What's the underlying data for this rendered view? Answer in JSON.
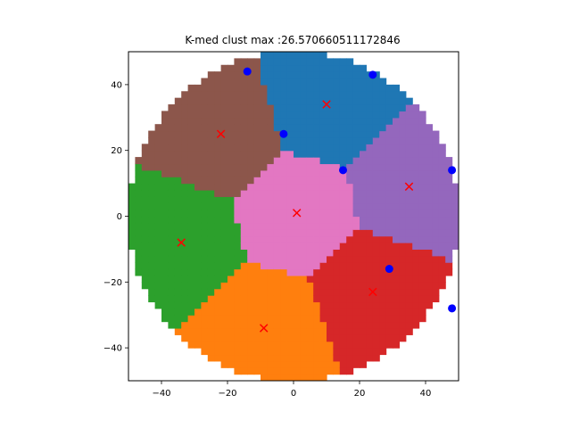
{
  "chart_data": {
    "type": "scatter",
    "title": "K-med clust max :26.570660511172846",
    "xlabel": "",
    "ylabel": "",
    "xlim": [
      -50,
      50
    ],
    "ylim": [
      -50,
      50
    ],
    "xticks": [
      -40,
      -20,
      0,
      20,
      40
    ],
    "yticks": [
      -40,
      -20,
      0,
      20,
      40
    ],
    "grid": false,
    "legend": "none",
    "region": {
      "shape": "disk",
      "center": [
        0,
        0
      ],
      "radius": 50
    },
    "clusters": [
      {
        "color": "#1f77b4",
        "medoid": [
          10,
          34
        ]
      },
      {
        "color": "#ff7f0e",
        "medoid": [
          -9,
          -34
        ]
      },
      {
        "color": "#2ca02c",
        "medoid": [
          -34,
          -8
        ]
      },
      {
        "color": "#d62728",
        "medoid": [
          24,
          -23
        ]
      },
      {
        "color": "#9467bd",
        "medoid": [
          35,
          9
        ]
      },
      {
        "color": "#8c564b",
        "medoid": [
          -22,
          25
        ]
      },
      {
        "color": "#e377c2",
        "medoid": [
          1,
          1
        ]
      }
    ],
    "medoid_marker": {
      "symbol": "x",
      "color": "#ff0000"
    },
    "blue_points": {
      "color": "#0000ff",
      "points": [
        [
          -14,
          44
        ],
        [
          24,
          43
        ],
        [
          -3,
          25
        ],
        [
          15,
          14
        ],
        [
          48,
          14
        ],
        [
          29,
          -16
        ],
        [
          48,
          -28
        ]
      ]
    }
  }
}
